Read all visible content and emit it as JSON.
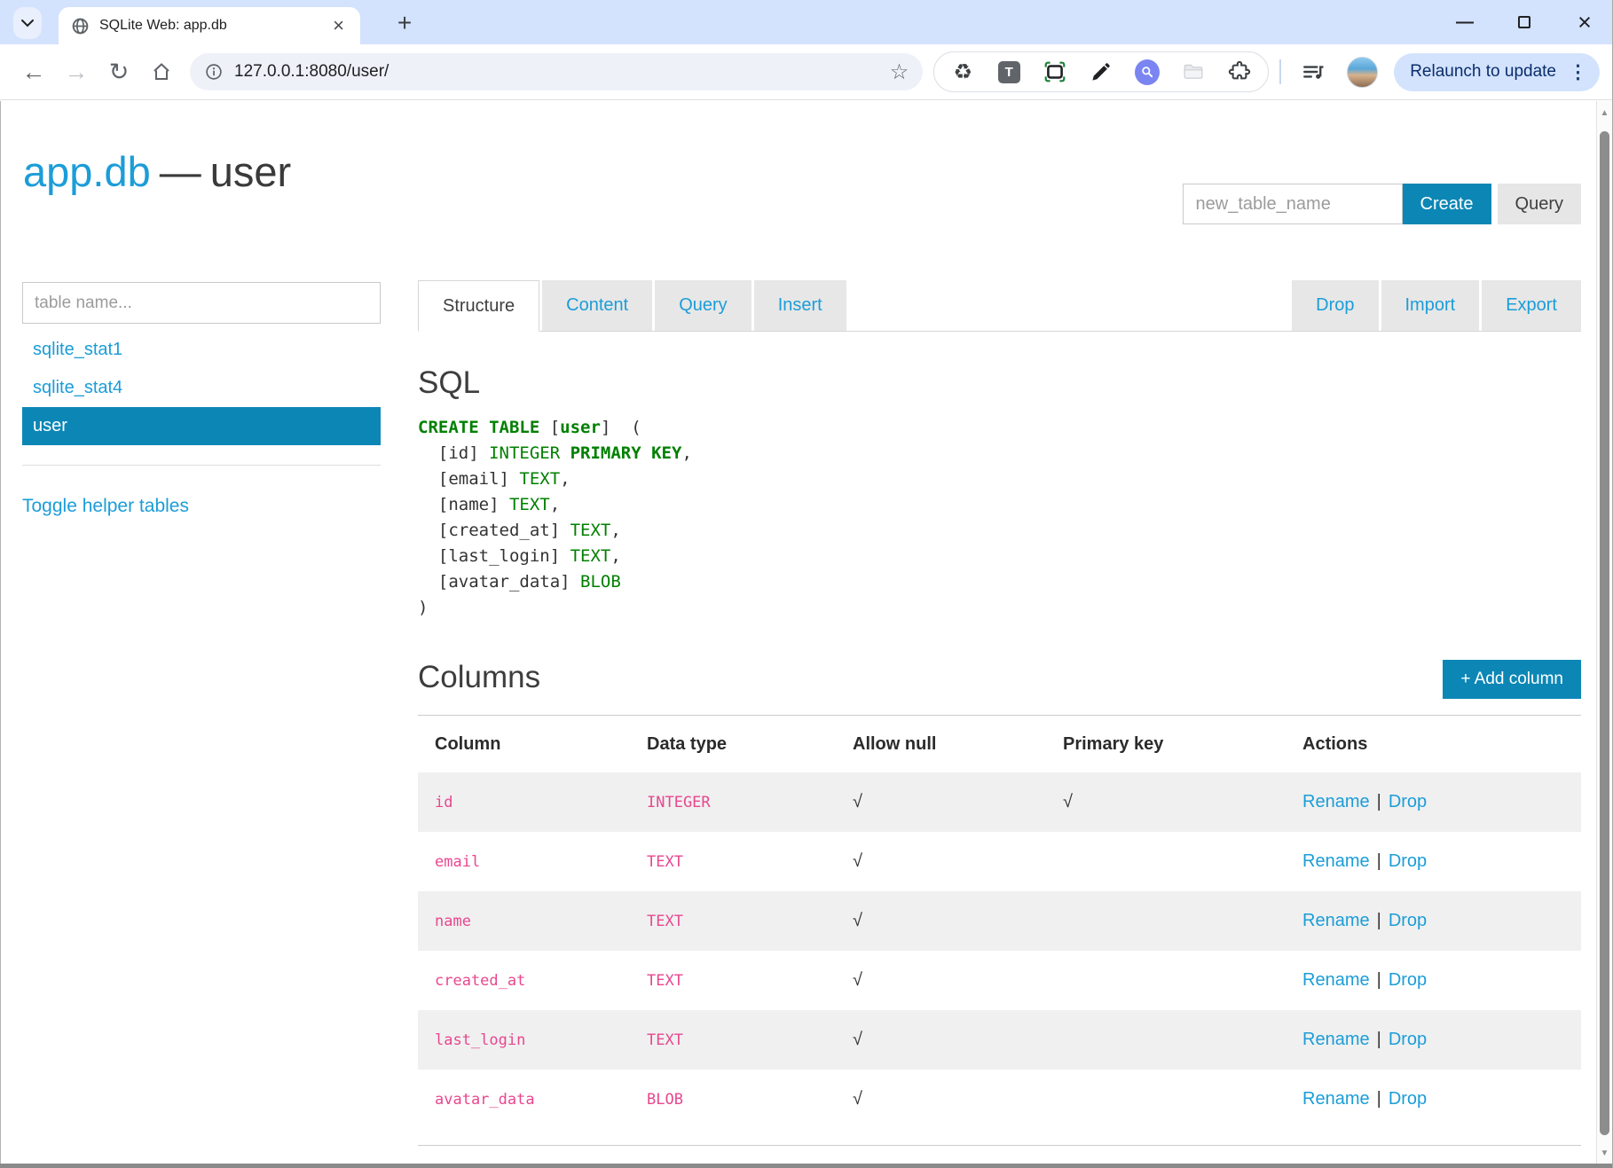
{
  "browser": {
    "tab_title": "SQLite Web: app.db",
    "url": "127.0.0.1:8080/user/",
    "relaunch_label": "Relaunch to update"
  },
  "icons": {
    "back": "←",
    "forward": "→",
    "reload": "↻",
    "star": "☆",
    "recycle": "♻",
    "text_tool": "T",
    "new_tab": "+",
    "close": "×",
    "minimize": "—",
    "kebab": "⋮",
    "scroll_up": "▲",
    "scroll_down": "▼"
  },
  "header": {
    "db_name": "app.db",
    "dash": "—",
    "table_name": "user",
    "new_table_placeholder": "new_table_name",
    "create_label": "Create",
    "query_label": "Query"
  },
  "sidebar": {
    "filter_placeholder": "table name...",
    "tables": [
      {
        "name": "sqlite_stat1",
        "selected": false
      },
      {
        "name": "sqlite_stat4",
        "selected": false
      },
      {
        "name": "user",
        "selected": true
      }
    ],
    "toggle_label": "Toggle helper tables"
  },
  "tabs": [
    {
      "label": "Structure",
      "active": true
    },
    {
      "label": "Content",
      "active": false
    },
    {
      "label": "Query",
      "active": false
    },
    {
      "label": "Insert",
      "active": false
    }
  ],
  "table_actions": [
    "Drop",
    "Import",
    "Export"
  ],
  "sql": {
    "heading": "SQL",
    "lines": [
      [
        {
          "t": "CREATE TABLE",
          "c": "k"
        },
        {
          "t": " [",
          "c": "p"
        },
        {
          "t": "user",
          "c": "k"
        },
        {
          "t": "]  (",
          "c": "p"
        }
      ],
      [
        {
          "t": "  [id] ",
          "c": "p"
        },
        {
          "t": "INTEGER",
          "c": "k2"
        },
        {
          "t": " ",
          "c": "p"
        },
        {
          "t": "PRIMARY KEY",
          "c": "k"
        },
        {
          "t": ",",
          "c": "p"
        }
      ],
      [
        {
          "t": "  [email] ",
          "c": "p"
        },
        {
          "t": "TEXT",
          "c": "k2"
        },
        {
          "t": ",",
          "c": "p"
        }
      ],
      [
        {
          "t": "  [name] ",
          "c": "p"
        },
        {
          "t": "TEXT",
          "c": "k2"
        },
        {
          "t": ",",
          "c": "p"
        }
      ],
      [
        {
          "t": "  [created_at] ",
          "c": "p"
        },
        {
          "t": "TEXT",
          "c": "k2"
        },
        {
          "t": ",",
          "c": "p"
        }
      ],
      [
        {
          "t": "  [last_login] ",
          "c": "p"
        },
        {
          "t": "TEXT",
          "c": "k2"
        },
        {
          "t": ",",
          "c": "p"
        }
      ],
      [
        {
          "t": "  [avatar_data] ",
          "c": "p"
        },
        {
          "t": "BLOB",
          "c": "k2"
        }
      ],
      [
        {
          "t": ")",
          "c": "p"
        }
      ]
    ]
  },
  "columns_section": {
    "heading": "Columns",
    "add_button": "+ Add column",
    "headers": [
      "Column",
      "Data type",
      "Allow null",
      "Primary key",
      "Actions"
    ],
    "check_glyph": "√",
    "action_separator": "|",
    "rename_label": "Rename",
    "drop_label": "Drop",
    "rows": [
      {
        "column": "id",
        "type": "INTEGER",
        "allow_null": true,
        "primary_key": true
      },
      {
        "column": "email",
        "type": "TEXT",
        "allow_null": true,
        "primary_key": false
      },
      {
        "column": "name",
        "type": "TEXT",
        "allow_null": true,
        "primary_key": false
      },
      {
        "column": "created_at",
        "type": "TEXT",
        "allow_null": true,
        "primary_key": false
      },
      {
        "column": "last_login",
        "type": "TEXT",
        "allow_null": true,
        "primary_key": false
      },
      {
        "column": "avatar_data",
        "type": "BLOB",
        "allow_null": true,
        "primary_key": false
      }
    ]
  },
  "colors": {
    "accent": "#1b9dd8",
    "accent-strong": "#0c87b5",
    "code-keyword": "#008000",
    "code-name": "#e8478f",
    "chrome-strip": "#d3e2fd"
  }
}
